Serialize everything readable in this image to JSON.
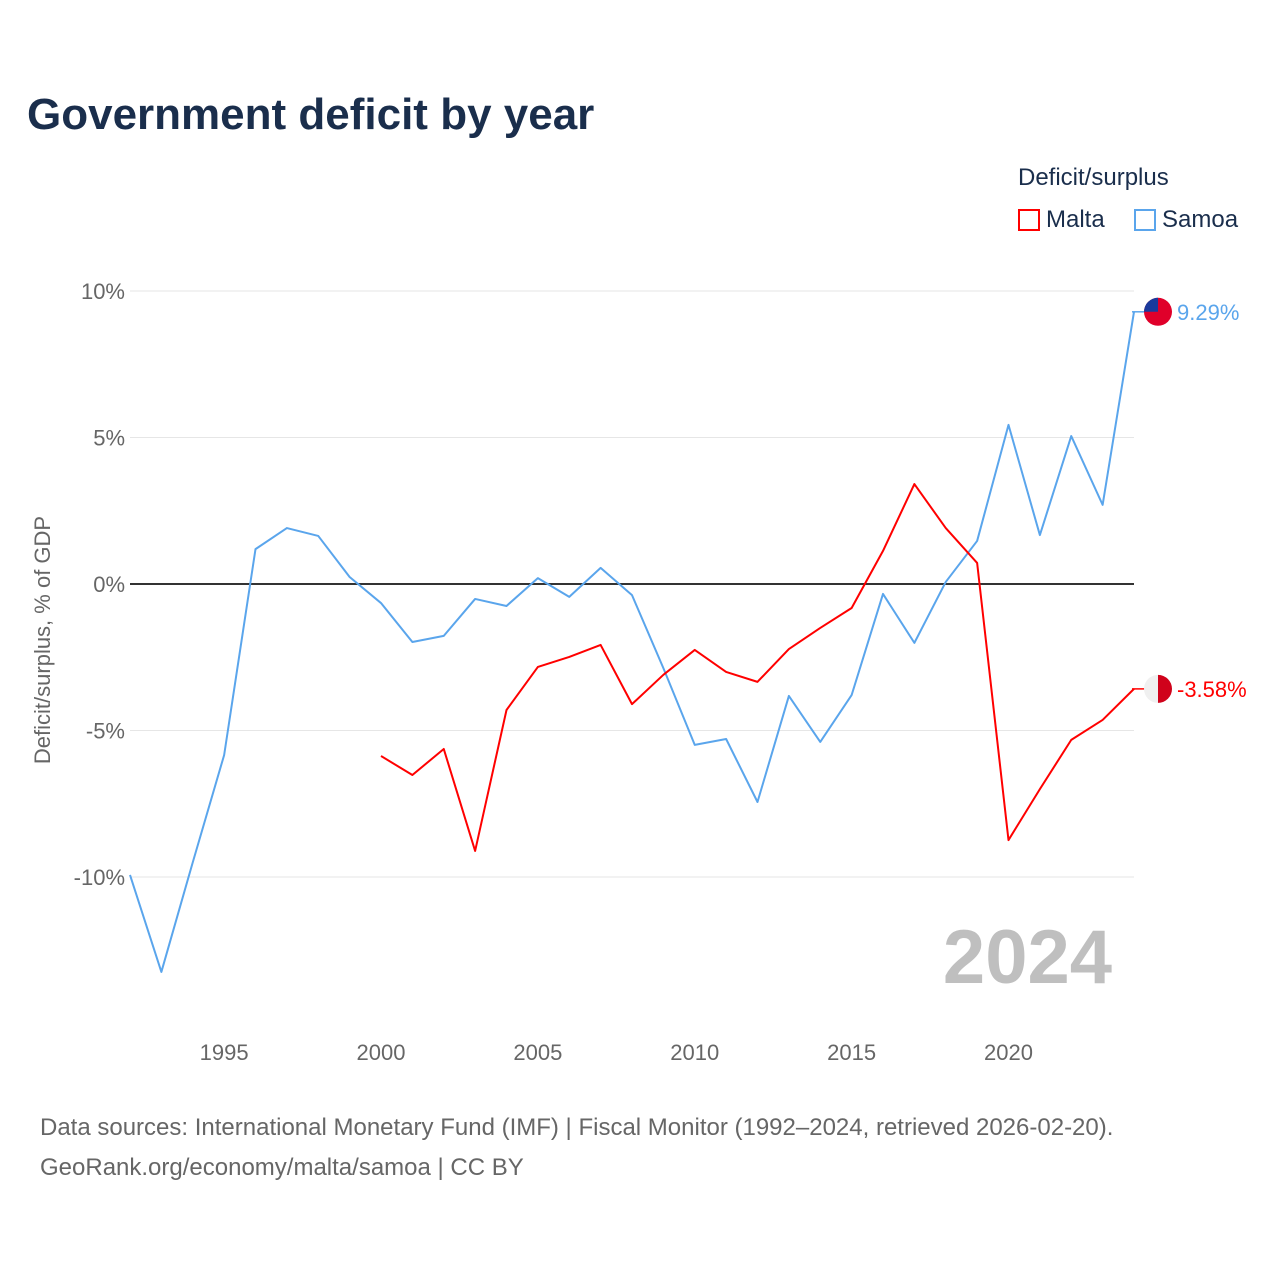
{
  "title": "Government deficit by year",
  "legend": {
    "title": "Deficit/surplus",
    "items": [
      {
        "name": "Malta",
        "color": "#ff0000"
      },
      {
        "name": "Samoa",
        "color": "#5aa5ec"
      }
    ]
  },
  "watermark_year": "2024",
  "source_line1": "Data sources: International Monetary Fund (IMF) | Fiscal Monitor (1992–2024, retrieved 2026-02-20).",
  "source_line2": "GeoRank.org/economy/malta/samoa | CC BY",
  "chart_data": {
    "type": "line",
    "title": "Government deficit by year",
    "xlabel": "",
    "ylabel": "Deficit/surplus, % of GDP",
    "xlim": [
      1992,
      2024
    ],
    "ylim": [
      -14,
      11
    ],
    "x_ticks": [
      1995,
      2000,
      2005,
      2010,
      2015,
      2020
    ],
    "y_ticks": [
      {
        "v": 10,
        "label": "10%"
      },
      {
        "v": 5,
        "label": "5%"
      },
      {
        "v": 0,
        "label": "0%"
      },
      {
        "v": -5,
        "label": "-5%"
      },
      {
        "v": -10,
        "label": "-10%"
      }
    ],
    "grid": true,
    "legend_position": "top-right",
    "series": [
      {
        "name": "Samoa",
        "color": "#5aa5ec",
        "end_label": "9.29%",
        "x": [
          1992,
          1993,
          1994,
          1995,
          1996,
          1997,
          1998,
          1999,
          2000,
          2001,
          2002,
          2003,
          2004,
          2005,
          2006,
          2007,
          2008,
          2009,
          2010,
          2011,
          2012,
          2013,
          2014,
          2015,
          2016,
          2017,
          2018,
          2019,
          2020,
          2021,
          2022,
          2023,
          2024
        ],
        "values": [
          -9.93,
          -13.24,
          -9.5,
          -5.84,
          1.19,
          1.91,
          1.64,
          0.24,
          -0.65,
          -1.98,
          -1.77,
          -0.51,
          -0.75,
          0.2,
          -0.44,
          0.55,
          -0.38,
          -2.87,
          -5.49,
          -5.29,
          -7.44,
          -3.82,
          -5.39,
          -3.79,
          -0.34,
          -2.01,
          0.07,
          1.47,
          5.43,
          1.67,
          5.05,
          2.7,
          9.29
        ]
      },
      {
        "name": "Malta",
        "color": "#ff0000",
        "end_label": "-3.58%",
        "x": [
          2000,
          2001,
          2002,
          2003,
          2004,
          2005,
          2006,
          2007,
          2008,
          2009,
          2010,
          2011,
          2012,
          2013,
          2014,
          2015,
          2016,
          2017,
          2018,
          2019,
          2020,
          2021,
          2022,
          2023,
          2024
        ],
        "values": [
          -5.87,
          -6.52,
          -5.63,
          -9.11,
          -4.3,
          -2.83,
          -2.49,
          -2.08,
          -4.1,
          -3.1,
          -2.25,
          -3.0,
          -3.34,
          -2.22,
          -1.5,
          -0.82,
          1.13,
          3.41,
          1.91,
          0.72,
          -8.74,
          -7.0,
          -5.32,
          -4.64,
          -3.58
        ]
      }
    ]
  }
}
